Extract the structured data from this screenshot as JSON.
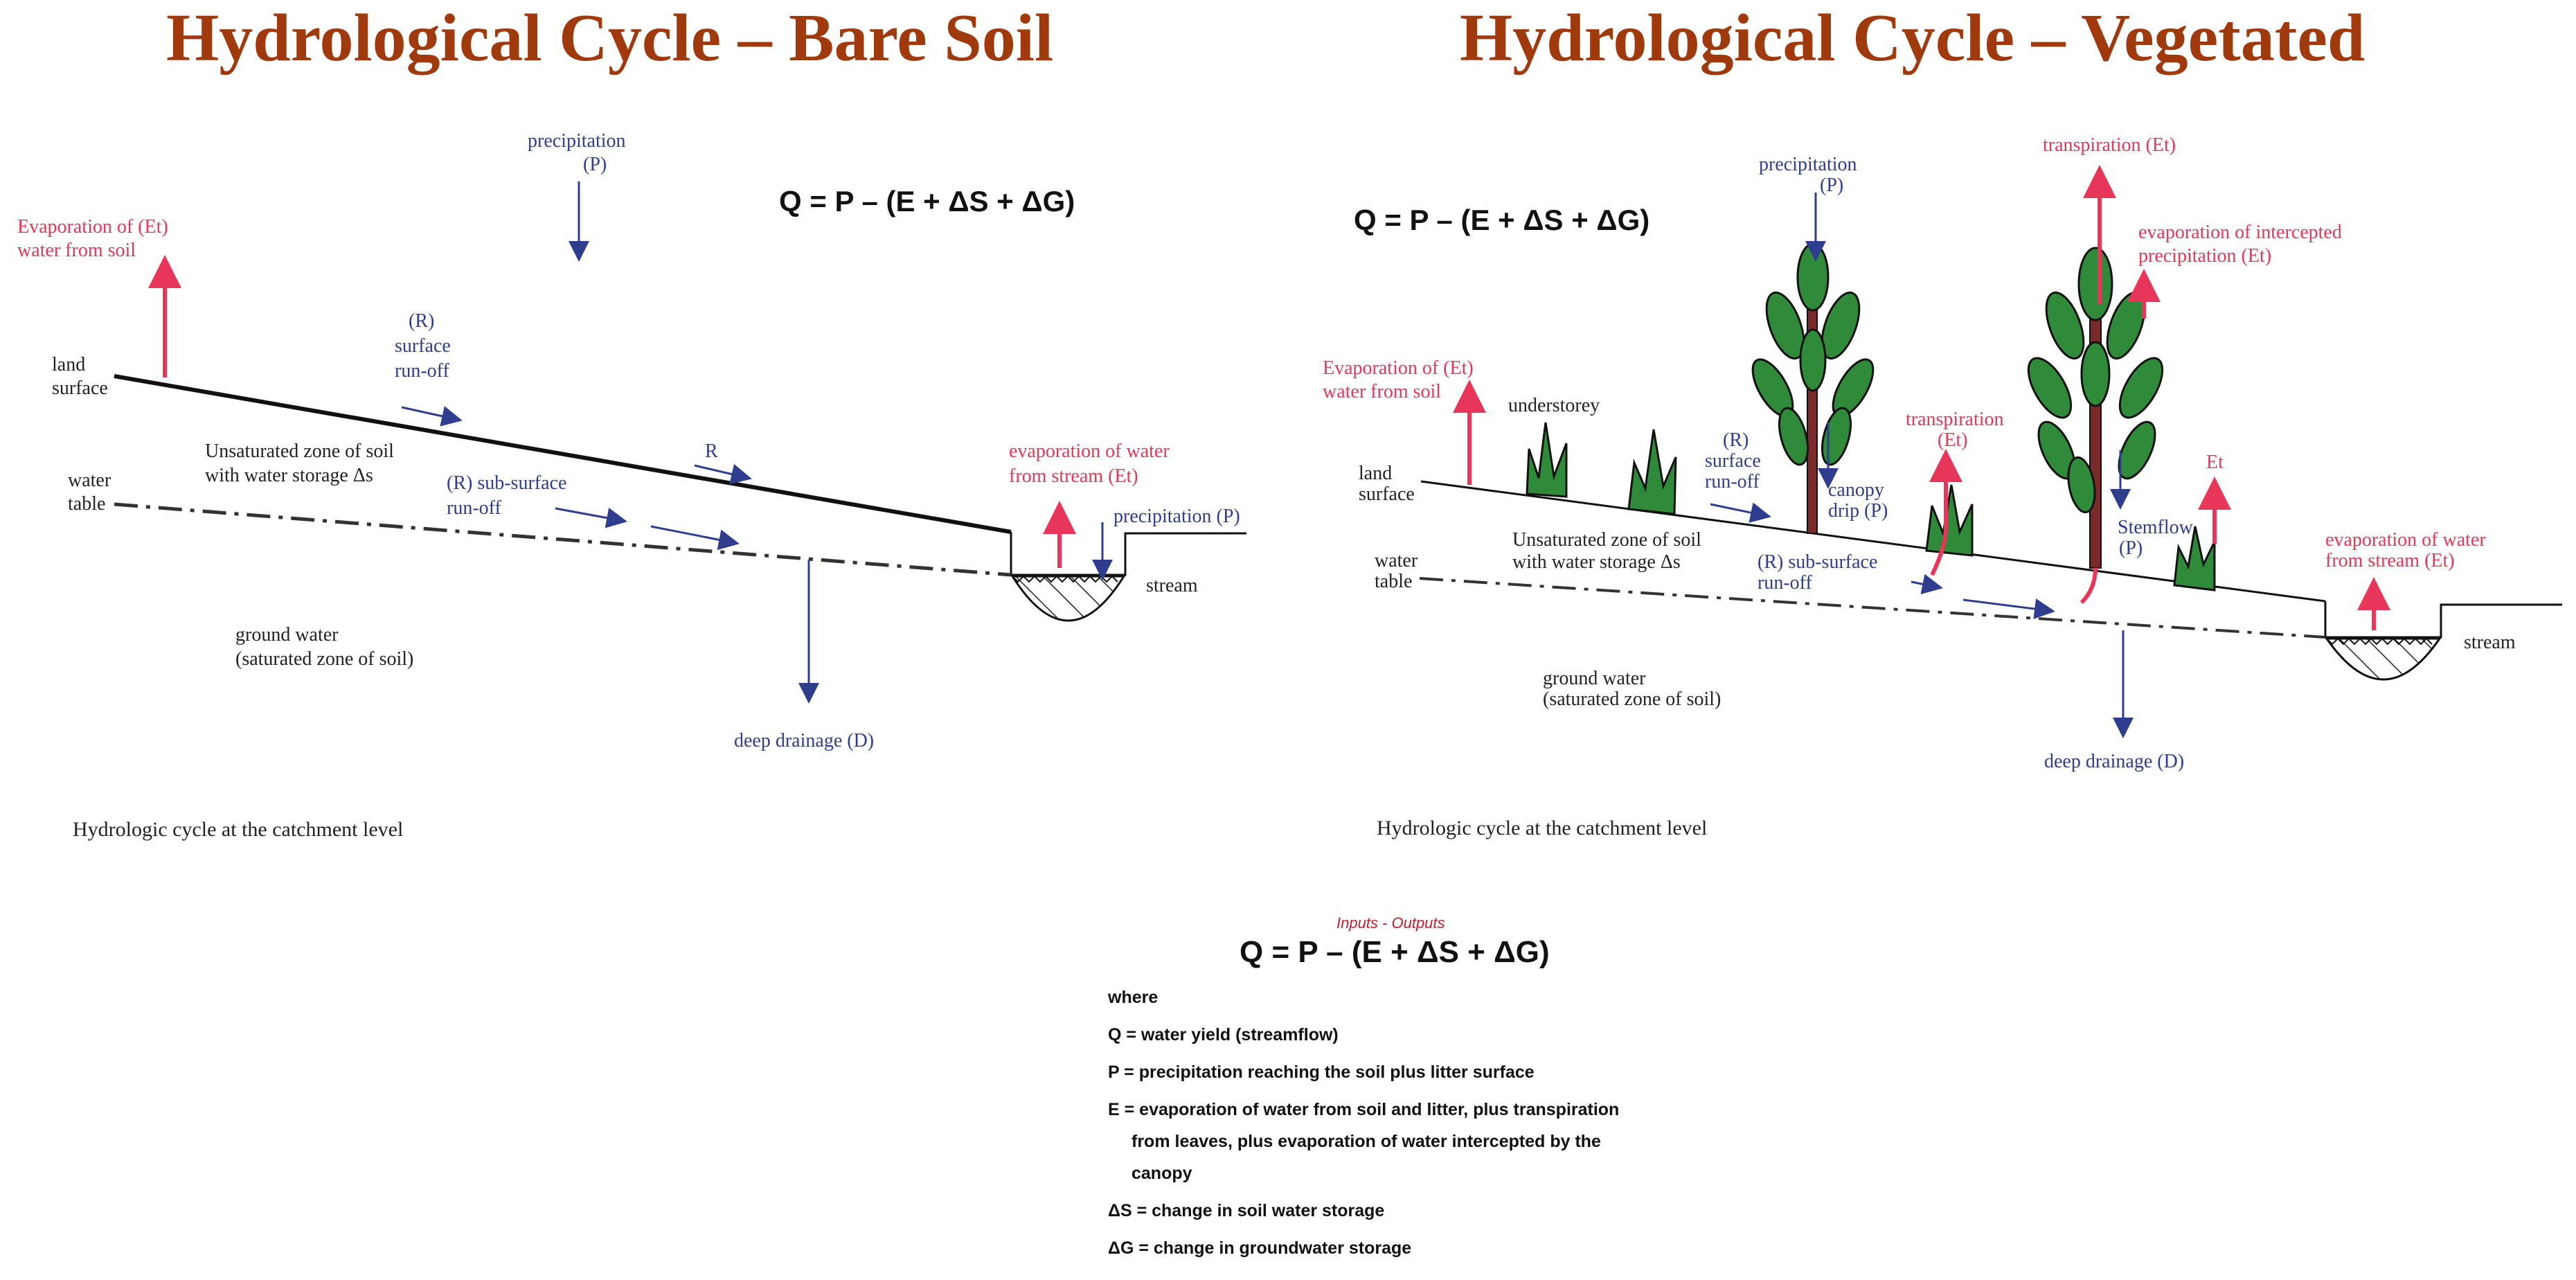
{
  "titles": {
    "bare": "Hydrological Cycle – Bare Soil",
    "vegetated": "Hydrological Cycle – Vegetated"
  },
  "bare": {
    "equation": "Q = P – (E + ΔS + ΔG)",
    "precip_1": "precipitation",
    "precip_2": "(P)",
    "evap_soil_1": "Evaporation of  (Et)",
    "evap_soil_2": "water from soil",
    "land_1": "land",
    "land_2": "surface",
    "surface_runoff_1": "(R)",
    "surface_runoff_2": "surface",
    "surface_runoff_3": "run-off",
    "unsat_1": "Unsaturated zone of soil",
    "unsat_2": "with water storage Δs",
    "r_label": "R",
    "water_table_1": "water",
    "water_table_2": "table",
    "subsurface_1": "(R) sub-surface",
    "subsurface_2": "run-off",
    "evap_stream_1": "evaporation of water",
    "evap_stream_2": "from stream (Et)",
    "precip_stream": "precipitation (P)",
    "stream": "stream",
    "groundwater_1": "ground water",
    "groundwater_2": "(saturated zone of soil)",
    "deep_drainage": "deep drainage (D)",
    "caption": "Hydrologic cycle at the catchment level"
  },
  "veg": {
    "equation": "Q = P – (E + ΔS + ΔG)",
    "precip_1": "precipitation",
    "precip_2": "(P)",
    "transp_top": "transpiration (Et)",
    "evap_intercept_1": "evaporation of intercepted",
    "evap_intercept_2": "precipitation (Et)",
    "evap_soil_1": "Evaporation of  (Et)",
    "evap_soil_2": "water from soil",
    "understorey": "understorey",
    "land_1": "land",
    "land_2": "surface",
    "surface_runoff_1": "(R)",
    "surface_runoff_2": "surface",
    "surface_runoff_3": "run-off",
    "canopy_drip_1": "canopy",
    "canopy_drip_2": "drip (P)",
    "transp_mid_1": "transpiration",
    "transp_mid_2": "(Et)",
    "et": "Et",
    "stemflow_1": "Stemflow",
    "stemflow_2": "(P)",
    "unsat_1": "Unsaturated zone of soil",
    "unsat_2": "with water storage Δs",
    "water_table_1": "water",
    "water_table_2": "table",
    "subsurface_1": "(R) sub-surface",
    "subsurface_2": "run-off",
    "evap_stream_1": "evaporation of water",
    "evap_stream_2": "from stream (Et)",
    "stream": "stream",
    "groundwater_1": "ground water",
    "groundwater_2": "(saturated zone of soil)",
    "deep_drainage": "deep drainage (D)",
    "caption": "Hydrologic cycle at the catchment level"
  },
  "legend": {
    "inputs_outputs": "Inputs - Outputs",
    "equation": "Q = P – (E + ΔS + ΔG)",
    "where": "where",
    "q": "Q = water yield (streamflow)",
    "p": "P = precipitation reaching the soil plus litter surface",
    "e_1": "E = evaporation of water from soil and litter, plus transpiration",
    "e_2": "from leaves, plus evaporation of water intercepted by the",
    "e_3": "canopy",
    "ds": "ΔS = change in soil water storage",
    "dg": "ΔG = change in groundwater storage"
  },
  "colors": {
    "title": "#a0390c",
    "flow_blue": "#2f3d8f",
    "evap_red": "#e8365a",
    "foliage_green": "#2f8a3a",
    "trunk": "#7a2a2a"
  }
}
